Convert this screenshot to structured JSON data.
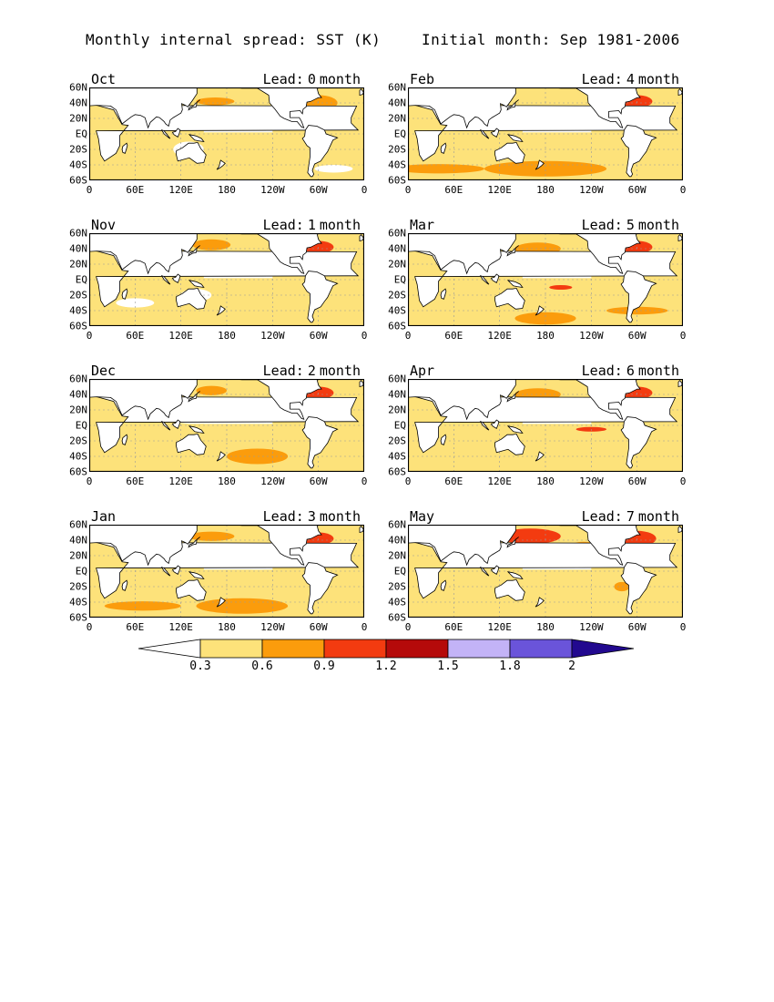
{
  "header": {
    "title_left": "Monthly internal spread: SST (K)",
    "title_right": "Initial month: Sep 1981-2006"
  },
  "chart_data": [
    {
      "type": "heatmap",
      "month": "Oct",
      "lead_label": "Lead:",
      "lead_value": "0",
      "lead_unit": "month",
      "level": 0.4
    },
    {
      "type": "heatmap",
      "month": "Nov",
      "lead_label": "Lead:",
      "lead_value": "1",
      "lead_unit": "month",
      "level": 0.5
    },
    {
      "type": "heatmap",
      "month": "Dec",
      "lead_label": "Lead:",
      "lead_value": "2",
      "lead_unit": "month",
      "level": 0.55
    },
    {
      "type": "heatmap",
      "month": "Jan",
      "lead_label": "Lead:",
      "lead_value": "3",
      "lead_unit": "month",
      "level": 0.6
    },
    {
      "type": "heatmap",
      "month": "Feb",
      "lead_label": "Lead:",
      "lead_value": "4",
      "lead_unit": "month",
      "level": 0.6
    },
    {
      "type": "heatmap",
      "month": "Mar",
      "lead_label": "Lead:",
      "lead_value": "5",
      "lead_unit": "month",
      "level": 0.65
    },
    {
      "type": "heatmap",
      "month": "Apr",
      "lead_label": "Lead:",
      "lead_value": "6",
      "lead_unit": "month",
      "level": 0.65
    },
    {
      "type": "heatmap",
      "month": "May",
      "lead_label": "Lead:",
      "lead_value": "7",
      "lead_unit": "month",
      "level": 0.7
    }
  ],
  "axes": {
    "y_ticks": [
      "60N",
      "40N",
      "20N",
      "EQ",
      "20S",
      "40S",
      "60S"
    ],
    "x_ticks": [
      "0",
      "60E",
      "120E",
      "180",
      "120W",
      "60W",
      "0"
    ]
  },
  "colorbar": {
    "labels": [
      "0.3",
      "0.6",
      "0.9",
      "1.2",
      "1.5",
      "1.8",
      "2"
    ],
    "colors": [
      "#ffffff",
      "#fde27a",
      "#fb9c0c",
      "#f33b10",
      "#b50a0a",
      "#c3b3f7",
      "#6a54da",
      "#22098f"
    ]
  }
}
